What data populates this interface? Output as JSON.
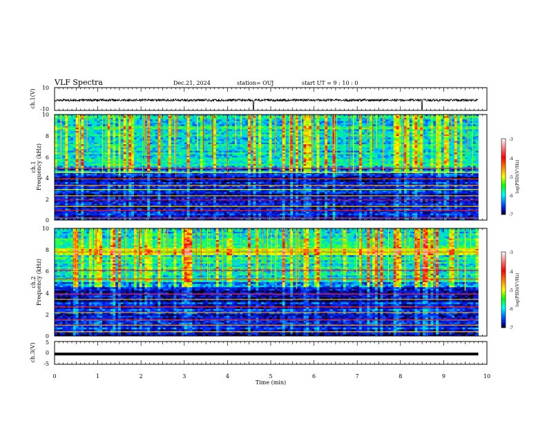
{
  "header": {
    "title": "VLF Spectra",
    "date": "Dec.21, 2024",
    "station": "station= OUJ",
    "start_ut": "start  UT =  9 : 10 : 0"
  },
  "chart_data": [
    {
      "type": "line",
      "panel": "ch1-waveform",
      "ylabel": "ch.1(V)",
      "ylim": [
        -10,
        10
      ],
      "yticks": [
        "10",
        "-10"
      ],
      "xlim": [
        0,
        10
      ],
      "baseline": -1.0,
      "noise_amplitude": 1.0,
      "spikes_at_min": [
        4.6,
        8.5
      ],
      "data_end_min": 9.8
    },
    {
      "type": "heatmap",
      "panel": "ch1-spectrogram",
      "ylabel": "ch.1\nFrequency (kHz)",
      "ylim": [
        0,
        10
      ],
      "yticks": [
        "0",
        "2",
        "4",
        "6",
        "8",
        "10"
      ],
      "xlim": [
        0,
        10
      ],
      "colorbar": {
        "label": "log(PSD)(V²/Hz)",
        "range": [
          -7,
          -3
        ],
        "ticks": [
          "-3",
          "-4",
          "-5",
          "-6",
          "-7"
        ]
      },
      "data_end_min": 9.8,
      "structure": "broadband impulsive emissions (sferics) 5–10 kHz, quieter 0–4.5 kHz with horizontal narrowband lines",
      "strong_lines_khz": [
        0.2,
        0.9,
        1.3,
        1.9,
        2.3,
        2.9,
        3.3,
        3.9,
        4.5,
        4.9
      ]
    },
    {
      "type": "heatmap",
      "panel": "ch2-spectrogram",
      "ylabel": "ch.2\nFrequency (kHz)",
      "ylim": [
        0,
        10
      ],
      "yticks": [
        "0",
        "2",
        "4",
        "6",
        "8",
        "10"
      ],
      "xlim": [
        0,
        10
      ],
      "colorbar": {
        "label": "log(PSD)(V²/Hz)",
        "range": [
          -7,
          -3
        ],
        "ticks": [
          "-3",
          "-4",
          "-5",
          "-6",
          "-7"
        ]
      },
      "data_end_min": 9.8,
      "structure": "broadband impulsive emissions 5–10 kHz, intense bands near 7.7–8.2 kHz, horizontal narrowband lines",
      "strong_lines_khz": [
        0.4,
        1.0,
        1.5,
        2.2,
        2.7,
        3.4,
        3.9,
        5.3,
        6.1,
        7.8,
        8.1
      ]
    },
    {
      "type": "line",
      "panel": "ch3-waveform",
      "ylabel": "ch.3(V)",
      "ylim": [
        -5,
        5
      ],
      "yticks": [
        "5",
        "0",
        "-5"
      ],
      "xlim": [
        0,
        10
      ],
      "baseline": -0.5,
      "data_end_min": 9.8
    }
  ],
  "xaxis": {
    "label": "Time  (min)",
    "ticks": [
      "0",
      "1",
      "2",
      "3",
      "4",
      "5",
      "6",
      "7",
      "8",
      "9",
      "10"
    ]
  },
  "colors": {
    "waveform": "#000000",
    "frame": "#000000"
  }
}
